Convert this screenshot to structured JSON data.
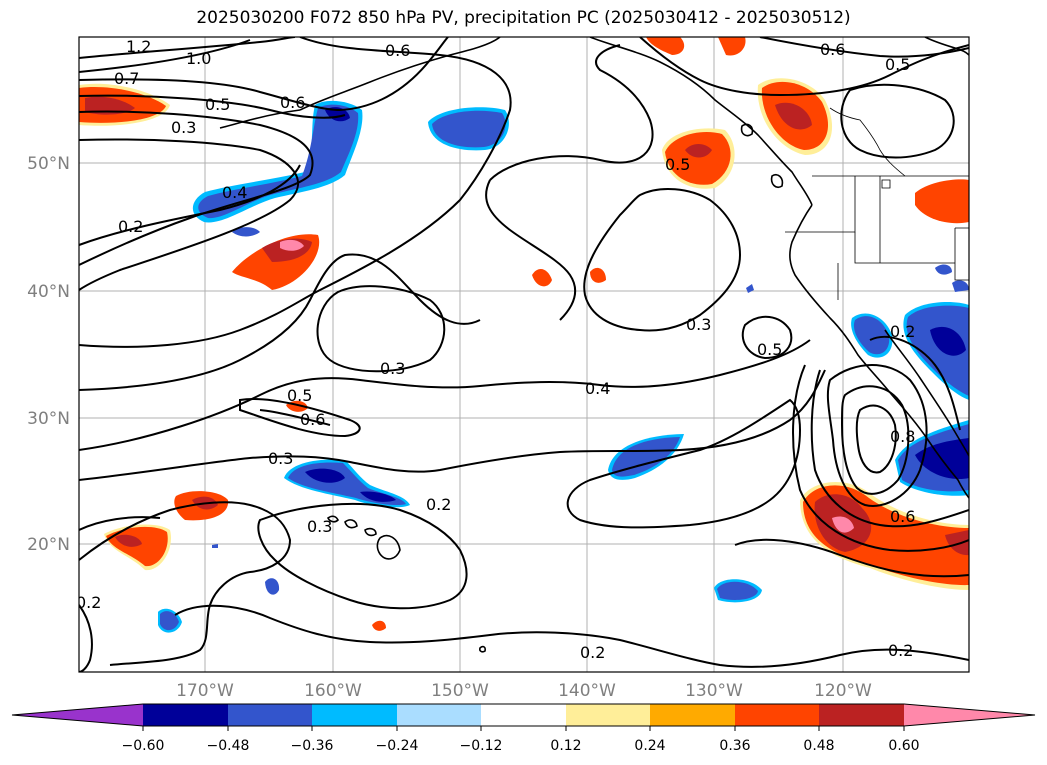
{
  "title": "2025030200 F072 850 hPa PV, precipitation PC (2025030412 - 2025030512)",
  "lat_ticks": [
    "50°N",
    "40°N",
    "30°N",
    "20°N"
  ],
  "lon_ticks": [
    "170°W",
    "160°W",
    "150°W",
    "140°W",
    "130°W",
    "120°W"
  ],
  "colorbar": {
    "colors": [
      "#9933cc",
      "#000099",
      "#3355cc",
      "#00bbff",
      "#aaddff",
      "#ffffff",
      "#ffee99",
      "#ffaa00",
      "#ff4400",
      "#bb2222",
      "#ff88aa"
    ],
    "tick_labels": [
      "−0.60",
      "−0.48",
      "−0.36",
      "−0.24",
      "−0.12",
      "0.12",
      "0.24",
      "0.36",
      "0.48",
      "0.60"
    ]
  },
  "contour_labels": [
    "1.2",
    "1.0",
    "0.7",
    "0.5",
    "0.3",
    "0.6",
    "0.4",
    "0.2",
    "0.5",
    "0.6",
    "0.3",
    "0.4",
    "0.3",
    "0.5",
    "0.2",
    "0.3",
    "0.6",
    "0.5",
    "0.2",
    "0.2",
    "0.6",
    "0.2",
    "0.8",
    "0.5",
    "0.6",
    "0.2",
    "0.3"
  ]
}
